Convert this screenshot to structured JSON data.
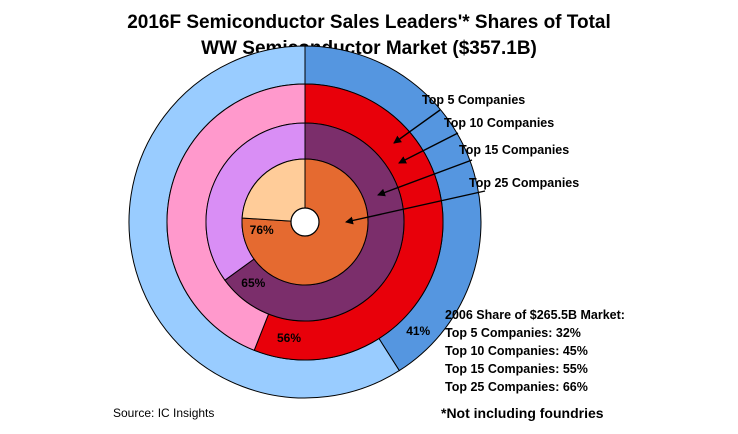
{
  "chart_data": {
    "type": "pie",
    "title_line1": "2016F Semiconductor Sales Leaders'* Shares of Total",
    "title_line2": "WW Semiconductor Market ($357.1B)",
    "rings": [
      {
        "name": "Top 5 Companies",
        "value": 41,
        "label": "41%",
        "color": "#5596e0",
        "rest_color": "#99ccff"
      },
      {
        "name": "Top 10 Companies",
        "value": 56,
        "label": "56%",
        "color": "#e8000a",
        "rest_color": "#ff99cc"
      },
      {
        "name": "Top 15 Companies",
        "value": 65,
        "label": "65%",
        "color": "#7b2e6b",
        "rest_color": "#d98ef5"
      },
      {
        "name": "Top 25 Companies",
        "value": 76,
        "label": "76%",
        "color": "#e56a30",
        "rest_color": "#ffcc99"
      }
    ]
  },
  "info_box": {
    "heading": "2006 Share of $265.5B Market:",
    "lines": [
      "Top 5 Companies: 32%",
      "Top 10 Companies: 45%",
      "Top 15 Companies: 55%",
      "Top 25 Companies: 66%"
    ]
  },
  "source": "Source: IC Insights",
  "footnote": "*Not including foundries"
}
